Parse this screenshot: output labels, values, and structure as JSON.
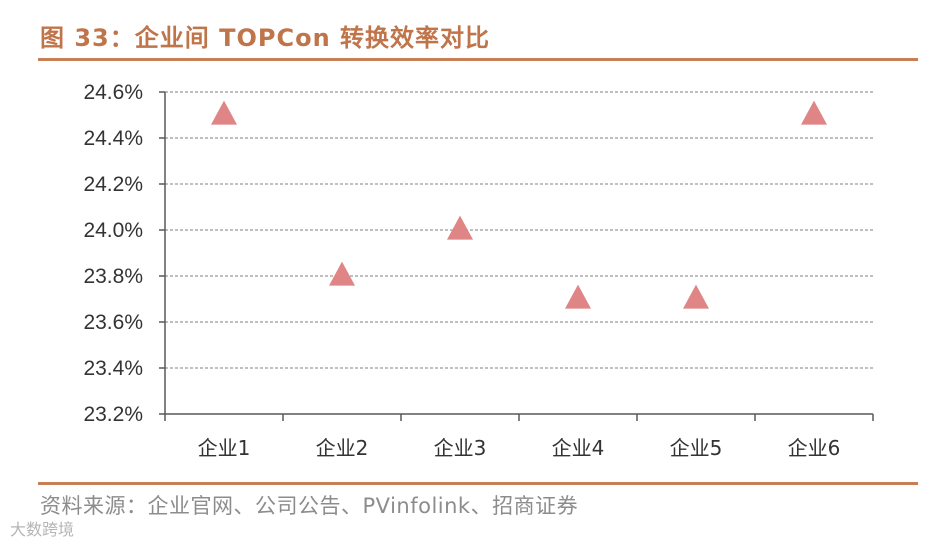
{
  "header": {
    "title": "图 33：企业间 TOPCon 转换效率对比"
  },
  "footer": {
    "source": "资料来源：企业官网、公司公告、PVinfolink、招商证券",
    "watermark": "大数跨境"
  },
  "colors": {
    "accent": "#c87f56",
    "marker": "#e08585",
    "grid": "#7f7f7f"
  },
  "chart_data": {
    "type": "scatter",
    "title": "企业间 TOPCon 转换效率对比",
    "xlabel": "",
    "ylabel": "",
    "categories": [
      "企业1",
      "企业2",
      "企业3",
      "企业4",
      "企业5",
      "企业6"
    ],
    "values": [
      24.5,
      23.8,
      24.0,
      23.7,
      23.7,
      24.5
    ],
    "unit": "%",
    "ylim": [
      23.2,
      24.6
    ],
    "yticks": [
      23.2,
      23.4,
      23.6,
      23.8,
      24.0,
      24.2,
      24.4,
      24.6
    ],
    "ytick_labels": [
      "23.2%",
      "23.4%",
      "23.6%",
      "23.8%",
      "24.0%",
      "24.2%",
      "24.4%",
      "24.6%"
    ],
    "marker": "triangle",
    "grid": true,
    "legend": "none"
  }
}
